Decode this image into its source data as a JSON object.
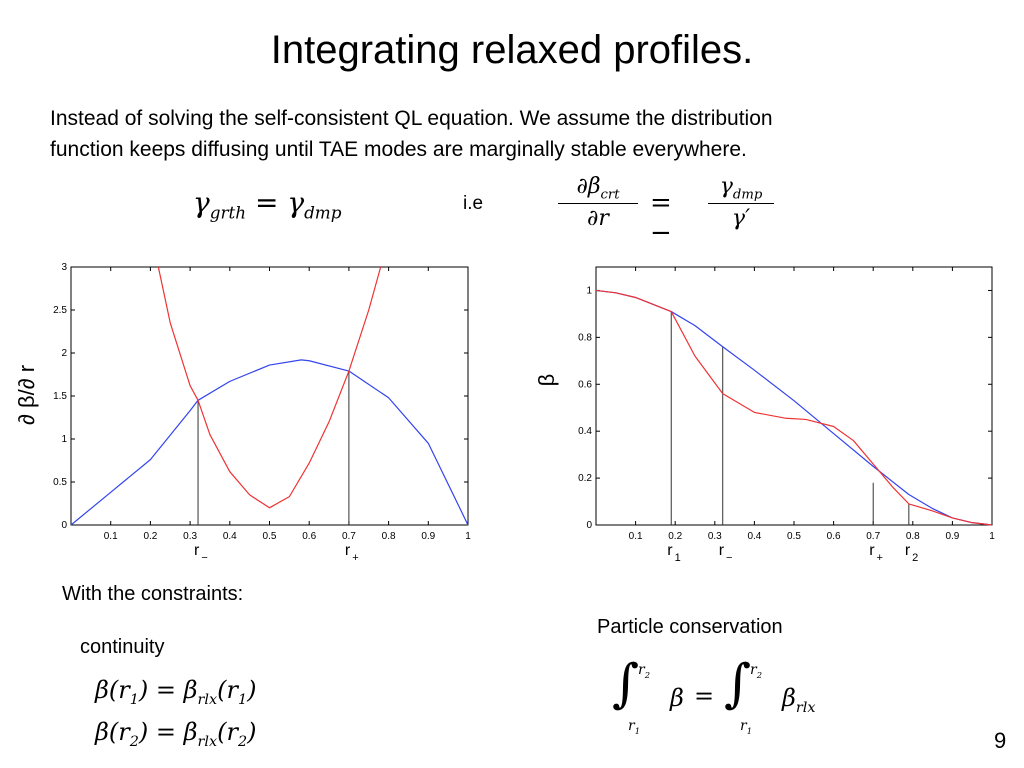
{
  "slide": {
    "title": "Integrating relaxed profiles.",
    "intro_line1": "Instead of solving the self-consistent QL equation. We assume the distribution",
    "intro_line2": "function keeps diffusing until TAE modes are marginally stable everywhere.",
    "ie": "i.e",
    "constraints_label": "With the constraints:",
    "continuity_label": "continuity",
    "particle_label": "Particle conservation",
    "page_number": "9"
  },
  "equations": {
    "eq1": "γ_grth = γ_dmp",
    "eq2": "∂β_crt/∂r = −γ_dmp/γ′",
    "cont1": "β(r1) = β_rlx(r1)",
    "cont2": "β(r2) = β_rlx(r2)",
    "particle": "∫_{r1}^{r2} β = ∫_{r1}^{r2} β_rlx"
  },
  "chart_data": [
    {
      "type": "line",
      "ylabel": "∂ β/∂ r",
      "xlim": [
        0,
        1
      ],
      "ylim": [
        0,
        3
      ],
      "xticks": [
        "0.1",
        "0.2",
        "0.3",
        "0.4",
        "0.5",
        "0.6",
        "0.7",
        "0.8",
        "0.9",
        "1"
      ],
      "yticks": [
        "0",
        "0.5",
        "1",
        "1.5",
        "2",
        "2.5",
        "3"
      ],
      "series": [
        {
          "color": "#3344ee",
          "x": [
            0,
            0.1,
            0.2,
            0.3,
            0.32,
            0.4,
            0.5,
            0.58,
            0.6,
            0.7,
            0.8,
            0.9,
            1.0
          ],
          "y": [
            0,
            0.38,
            0.76,
            1.33,
            1.45,
            1.67,
            1.86,
            1.92,
            1.91,
            1.79,
            1.48,
            0.95,
            0.0
          ]
        },
        {
          "color": "#ee3333",
          "x": [
            0.22,
            0.25,
            0.3,
            0.32,
            0.35,
            0.4,
            0.45,
            0.5,
            0.55,
            0.6,
            0.65,
            0.7,
            0.75,
            0.78
          ],
          "y": [
            3.0,
            2.35,
            1.62,
            1.45,
            1.05,
            0.62,
            0.35,
            0.2,
            0.33,
            0.72,
            1.2,
            1.79,
            2.5,
            3.0
          ]
        }
      ],
      "vlines": [
        {
          "x": 0.32,
          "y": 1.45,
          "label": "r",
          "sub": "−"
        },
        {
          "x": 0.7,
          "y": 1.79,
          "label": "r",
          "sub": "+"
        }
      ]
    },
    {
      "type": "line",
      "ylabel": "β",
      "xlim": [
        0,
        1
      ],
      "ylim": [
        0,
        1.1
      ],
      "xticks": [
        "0.1",
        "0.2",
        "0.3",
        "0.4",
        "0.5",
        "0.6",
        "0.7",
        "0.8",
        "0.9",
        "1"
      ],
      "yticks": [
        "0",
        "0.2",
        "0.4",
        "0.6",
        "0.8",
        "1"
      ],
      "series": [
        {
          "color": "#3344ee",
          "x": [
            0,
            0.05,
            0.1,
            0.19,
            0.25,
            0.32,
            0.4,
            0.5,
            0.6,
            0.7,
            0.79,
            0.85,
            0.9,
            0.95,
            1.0
          ],
          "y": [
            1.0,
            0.99,
            0.97,
            0.91,
            0.85,
            0.76,
            0.66,
            0.53,
            0.39,
            0.25,
            0.13,
            0.07,
            0.03,
            0.01,
            0.0
          ]
        },
        {
          "color": "#ee3333",
          "x": [
            0,
            0.05,
            0.1,
            0.19,
            0.25,
            0.32,
            0.4,
            0.48,
            0.53,
            0.6,
            0.65,
            0.7,
            0.75,
            0.79,
            0.85,
            0.9,
            0.95,
            1.0
          ],
          "y": [
            1.0,
            0.99,
            0.97,
            0.91,
            0.72,
            0.56,
            0.48,
            0.455,
            0.45,
            0.42,
            0.36,
            0.26,
            0.16,
            0.09,
            0.06,
            0.03,
            0.01,
            0.0
          ]
        }
      ],
      "vlines": [
        {
          "x": 0.19,
          "y": 0.91,
          "label": "r",
          "sub": "1"
        },
        {
          "x": 0.32,
          "y": 0.76,
          "label": "r",
          "sub": "−"
        },
        {
          "x": 0.7,
          "y": 0.18,
          "label": "r",
          "sub": "+"
        },
        {
          "x": 0.79,
          "y": 0.09,
          "label": "r",
          "sub": "2"
        }
      ]
    }
  ]
}
